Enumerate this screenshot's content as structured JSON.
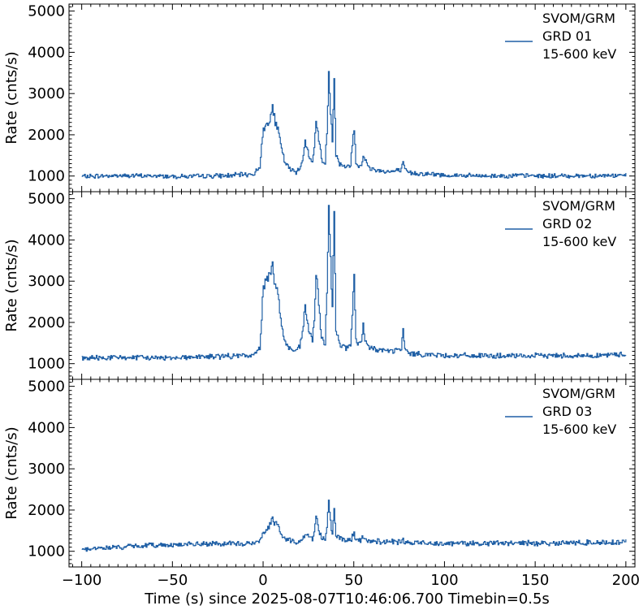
{
  "chart_data": {
    "type": "line",
    "shared_x": true,
    "xlabel": "Time (s) since 2025-08-07T10:46:06.700 Timebin=0.5s",
    "xlim": [
      -107,
      205
    ],
    "xticks": [
      -100,
      -50,
      0,
      50,
      100,
      150,
      200
    ],
    "xtick_labels": [
      "−100",
      "−50",
      "0",
      "50",
      "100",
      "150",
      "200"
    ],
    "ylim": [
      620,
      5170
    ],
    "yticks": [
      1000,
      2000,
      3000,
      4000,
      5000
    ],
    "ytick_labels": [
      "1000",
      "2000",
      "3000",
      "4000",
      "5000"
    ],
    "line_color": "#1f5fa5",
    "legend_position": "upper right",
    "panels": [
      {
        "ylabel": "Rate (cnts/s)",
        "legend": [
          "SVOM/GRM",
          "GRD 01",
          "15-600 keV"
        ],
        "baseline": 1000,
        "x": [
          -100,
          -80,
          -60,
          -40,
          -20,
          -5,
          -2,
          0,
          2,
          4,
          5,
          6,
          8,
          10,
          12,
          15,
          18,
          20,
          22,
          23,
          24,
          25,
          27,
          28,
          29,
          30,
          32,
          34,
          35,
          36,
          37,
          38,
          39,
          40,
          42,
          44,
          46,
          48,
          49,
          50,
          51,
          52,
          54,
          55,
          56,
          58,
          62,
          70,
          76,
          77,
          78,
          80,
          90,
          100,
          120,
          140,
          160,
          180,
          200
        ],
        "y": [
          990,
          1010,
          1000,
          990,
          1010,
          1050,
          1250,
          2150,
          2250,
          2500,
          2650,
          2400,
          2100,
          1650,
          1300,
          1150,
          1100,
          1200,
          1500,
          1800,
          1650,
          1550,
          1300,
          1700,
          2300,
          2100,
          1400,
          1300,
          2100,
          3500,
          2600,
          1900,
          3400,
          1500,
          1300,
          1250,
          1200,
          1300,
          1750,
          2150,
          1350,
          1250,
          1300,
          1500,
          1400,
          1200,
          1150,
          1100,
          1150,
          1300,
          1150,
          1080,
          1050,
          1020,
          1000,
          1010,
          1000,
          1010,
          1010
        ]
      },
      {
        "ylabel": "Rate (cnts/s)",
        "legend": [
          "SVOM/GRM",
          "GRD 02",
          "15-600 keV"
        ],
        "baseline": 1150,
        "x": [
          -100,
          -80,
          -60,
          -40,
          -20,
          -5,
          -2,
          0,
          2,
          4,
          5,
          6,
          8,
          10,
          12,
          15,
          18,
          20,
          22,
          23,
          24,
          25,
          27,
          28,
          29,
          30,
          32,
          34,
          35,
          36,
          37,
          38,
          39,
          40,
          42,
          44,
          46,
          48,
          49,
          50,
          51,
          52,
          54,
          55,
          56,
          58,
          62,
          70,
          76,
          77,
          78,
          80,
          90,
          100,
          120,
          140,
          160,
          180,
          200
        ],
        "y": [
          1130,
          1150,
          1140,
          1160,
          1180,
          1200,
          1400,
          2900,
          3000,
          3300,
          3600,
          3000,
          2700,
          1900,
          1500,
          1350,
          1300,
          1400,
          1900,
          2400,
          2100,
          1800,
          1550,
          2100,
          3150,
          2700,
          1600,
          1500,
          2700,
          4850,
          3500,
          2400,
          4750,
          1800,
          1500,
          1400,
          1380,
          1450,
          2200,
          3150,
          1550,
          1450,
          1500,
          1900,
          1550,
          1400,
          1350,
          1300,
          1350,
          1800,
          1350,
          1250,
          1220,
          1200,
          1190,
          1180,
          1200,
          1190,
          1230
        ]
      },
      {
        "ylabel": "Rate (cnts/s)",
        "legend": [
          "SVOM/GRM",
          "GRD 03",
          "15-600 keV"
        ],
        "baseline": 1150,
        "x": [
          -100,
          -80,
          -60,
          -40,
          -20,
          -5,
          -2,
          0,
          2,
          4,
          5,
          6,
          8,
          10,
          12,
          15,
          18,
          20,
          22,
          23,
          24,
          25,
          27,
          28,
          29,
          30,
          32,
          34,
          35,
          36,
          37,
          38,
          39,
          40,
          42,
          44,
          46,
          48,
          49,
          50,
          51,
          52,
          54,
          55,
          56,
          58,
          62,
          70,
          76,
          77,
          78,
          80,
          90,
          100,
          120,
          140,
          160,
          180,
          200
        ],
        "y": [
          1050,
          1100,
          1150,
          1170,
          1180,
          1190,
          1250,
          1450,
          1550,
          1700,
          1800,
          1700,
          1600,
          1400,
          1300,
          1250,
          1230,
          1270,
          1330,
          1400,
          1380,
          1350,
          1300,
          1450,
          1850,
          1600,
          1350,
          1300,
          1650,
          2150,
          1700,
          1450,
          2000,
          1350,
          1300,
          1280,
          1270,
          1280,
          1350,
          1400,
          1280,
          1260,
          1270,
          1350,
          1290,
          1260,
          1240,
          1230,
          1220,
          1250,
          1220,
          1210,
          1200,
          1200,
          1190,
          1200,
          1200,
          1210,
          1230
        ]
      }
    ]
  }
}
